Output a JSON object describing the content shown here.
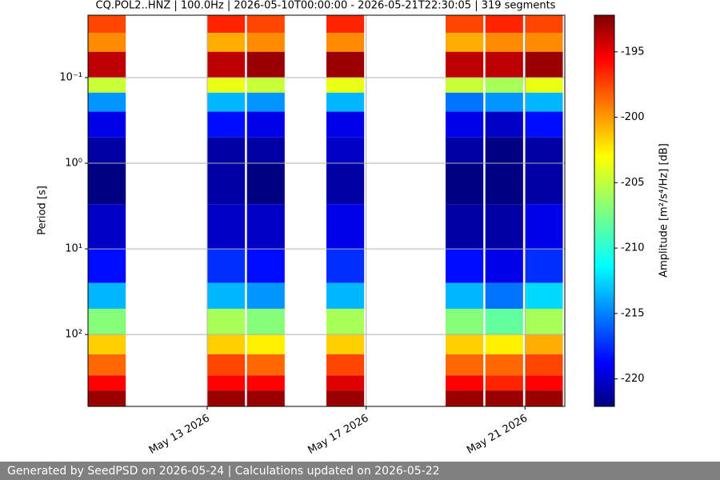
{
  "chart_data": {
    "type": "spectrogram",
    "title": "CQ.POL2..HNZ | 100.0Hz | 2026-05-10T00:00:00 - 2026-05-21T22:30:05 | 319 segments",
    "y_label": "Period [s]",
    "colorbar_label": "Amplitude [m²/s⁴/Hz] [dB]",
    "x": [
      "2026-05-10",
      "2026-05-13",
      "2026-05-14",
      "2026-05-16",
      "2026-05-19",
      "2026-05-20",
      "2026-05-21"
    ],
    "period_edges": [
      0.0187,
      0.03,
      0.05,
      0.1,
      0.15,
      0.25,
      0.5,
      1,
      3,
      10,
      25,
      50,
      100,
      170,
      300,
      450,
      690
    ],
    "values": [
      [
        -198,
        -197,
        -198,
        -197,
        -198,
        -197,
        -198
      ],
      [
        -200,
        -201,
        -200,
        -200,
        -201,
        -200,
        -200
      ],
      [
        -194,
        -194,
        -193,
        -193,
        -194,
        -194,
        -193
      ],
      [
        -205,
        -204,
        -205,
        -204,
        -205,
        -206,
        -204
      ],
      [
        -214,
        -213,
        -214,
        -213,
        -215,
        -214,
        -213
      ],
      [
        -219,
        -218,
        -219,
        -219,
        -219,
        -220,
        -218
      ],
      [
        -221,
        -221,
        -221,
        -220,
        -221,
        -222,
        -221
      ],
      [
        -222,
        -221,
        -222,
        -221,
        -222,
        -222,
        -221
      ],
      [
        -220,
        -220,
        -220,
        -219,
        -221,
        -221,
        -219
      ],
      [
        -218,
        -217,
        -218,
        -217,
        -218,
        -219,
        -217
      ],
      [
        -213,
        -213,
        -214,
        -213,
        -213,
        -215,
        -212
      ],
      [
        -207,
        -206,
        -207,
        -206,
        -207,
        -208,
        -206
      ],
      [
        -202,
        -202,
        -203,
        -202,
        -202,
        -203,
        -201
      ],
      [
        -199,
        -198,
        -199,
        -198,
        -199,
        -199,
        -198
      ],
      [
        -196,
        -196,
        -196,
        -195,
        -196,
        -197,
        -196
      ],
      [
        -193,
        -193,
        -193,
        -193,
        -193,
        -193,
        -193
      ]
    ],
    "colormap": "jet",
    "clim": [
      -222.1,
      -192.2
    ],
    "cticks": [
      -195,
      -200,
      -205,
      -210,
      -215,
      -220
    ],
    "xlim": [
      "2026-05-10",
      "2026-05-22"
    ],
    "xticks": [
      {
        "value": "2026-05-13",
        "label": "May 13 2026"
      },
      {
        "value": "2026-05-17",
        "label": "May 17 2026"
      },
      {
        "value": "2026-05-21",
        "label": "May 21 2026"
      }
    ],
    "ylim": [
      0.0187,
      690
    ],
    "y_scale": "log",
    "y_inverted": true,
    "yticks": [
      {
        "value": 0.1,
        "label": "10⁻¹"
      },
      {
        "value": 1,
        "label": "10⁰"
      },
      {
        "value": 10,
        "label": "10¹"
      },
      {
        "value": 100,
        "label": "10²"
      }
    ],
    "grid": true
  },
  "footer": "Generated by SeedPSD on 2026-05-24 | Calculations updated on 2026-05-22"
}
